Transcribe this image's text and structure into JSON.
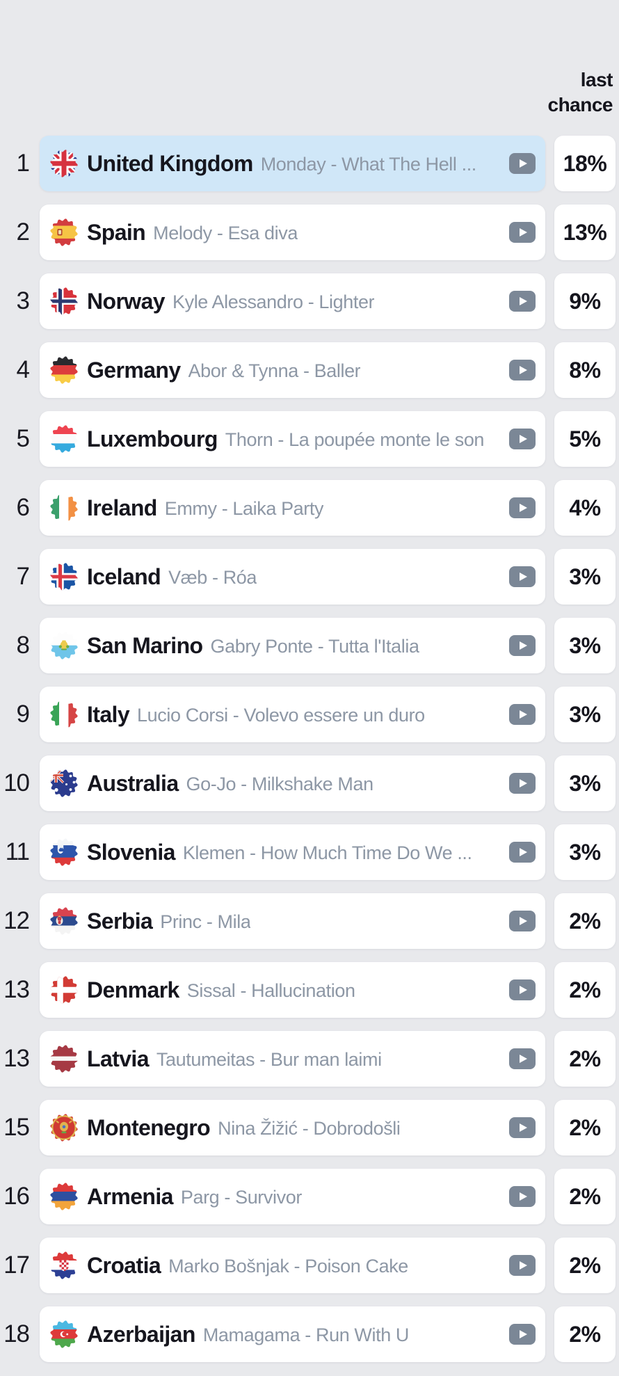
{
  "header": {
    "line1": "last",
    "line2": "chance"
  },
  "colors": {
    "page_background": "#e8e9ec",
    "card_background": "#ffffff",
    "highlight_row_background": "#d0e7f8",
    "play_button": "#7b8796",
    "country_text": "#16161e",
    "entry_text": "#8d97a5",
    "rank_text": "#1a1a22",
    "percent_text": "#15151d"
  },
  "icons": {
    "play": "play-icon",
    "flag": "country-flag-icon"
  },
  "rows": [
    {
      "rank": "1",
      "country": "United Kingdom",
      "entry": "Monday - What The Hell ...",
      "chance": "18%",
      "flag": "gb",
      "highlighted": true
    },
    {
      "rank": "2",
      "country": "Spain",
      "entry": "Melody - Esa diva",
      "chance": "13%",
      "flag": "es",
      "highlighted": false
    },
    {
      "rank": "3",
      "country": "Norway",
      "entry": "Kyle Alessandro - Lighter",
      "chance": "9%",
      "flag": "no",
      "highlighted": false
    },
    {
      "rank": "4",
      "country": "Germany",
      "entry": "Abor & Tynna - Baller",
      "chance": "8%",
      "flag": "de",
      "highlighted": false
    },
    {
      "rank": "5",
      "country": "Luxembourg",
      "entry": "Thorn - La poupée monte le son",
      "chance": "5%",
      "flag": "lu",
      "highlighted": false
    },
    {
      "rank": "6",
      "country": "Ireland",
      "entry": "Emmy - Laika Party",
      "chance": "4%",
      "flag": "ie",
      "highlighted": false
    },
    {
      "rank": "7",
      "country": "Iceland",
      "entry": "Væb - Róa",
      "chance": "3%",
      "flag": "is",
      "highlighted": false
    },
    {
      "rank": "8",
      "country": "San Marino",
      "entry": "Gabry Ponte - Tutta l'Italia",
      "chance": "3%",
      "flag": "sm",
      "highlighted": false
    },
    {
      "rank": "9",
      "country": "Italy",
      "entry": "Lucio Corsi - Volevo essere un duro",
      "chance": "3%",
      "flag": "it",
      "highlighted": false
    },
    {
      "rank": "10",
      "country": "Australia",
      "entry": "Go-Jo - Milkshake Man",
      "chance": "3%",
      "flag": "au",
      "highlighted": false
    },
    {
      "rank": "11",
      "country": "Slovenia",
      "entry": "Klemen - How Much Time Do We ...",
      "chance": "3%",
      "flag": "si",
      "highlighted": false
    },
    {
      "rank": "12",
      "country": "Serbia",
      "entry": "Princ - Mila",
      "chance": "2%",
      "flag": "rs",
      "highlighted": false
    },
    {
      "rank": "13",
      "country": "Denmark",
      "entry": "Sissal - Hallucination",
      "chance": "2%",
      "flag": "dk",
      "highlighted": false
    },
    {
      "rank": "13",
      "country": "Latvia",
      "entry": "Tautumeitas - Bur man laimi",
      "chance": "2%",
      "flag": "lv",
      "highlighted": false
    },
    {
      "rank": "15",
      "country": "Montenegro",
      "entry": "Nina Žižić - Dobrodošli",
      "chance": "2%",
      "flag": "me",
      "highlighted": false
    },
    {
      "rank": "16",
      "country": "Armenia",
      "entry": "Parg - Survivor",
      "chance": "2%",
      "flag": "am",
      "highlighted": false
    },
    {
      "rank": "17",
      "country": "Croatia",
      "entry": "Marko Bošnjak - Poison Cake",
      "chance": "2%",
      "flag": "hr",
      "highlighted": false
    },
    {
      "rank": "18",
      "country": "Azerbaijan",
      "entry": "Mamagama - Run With U",
      "chance": "2%",
      "flag": "az",
      "highlighted": false
    }
  ]
}
